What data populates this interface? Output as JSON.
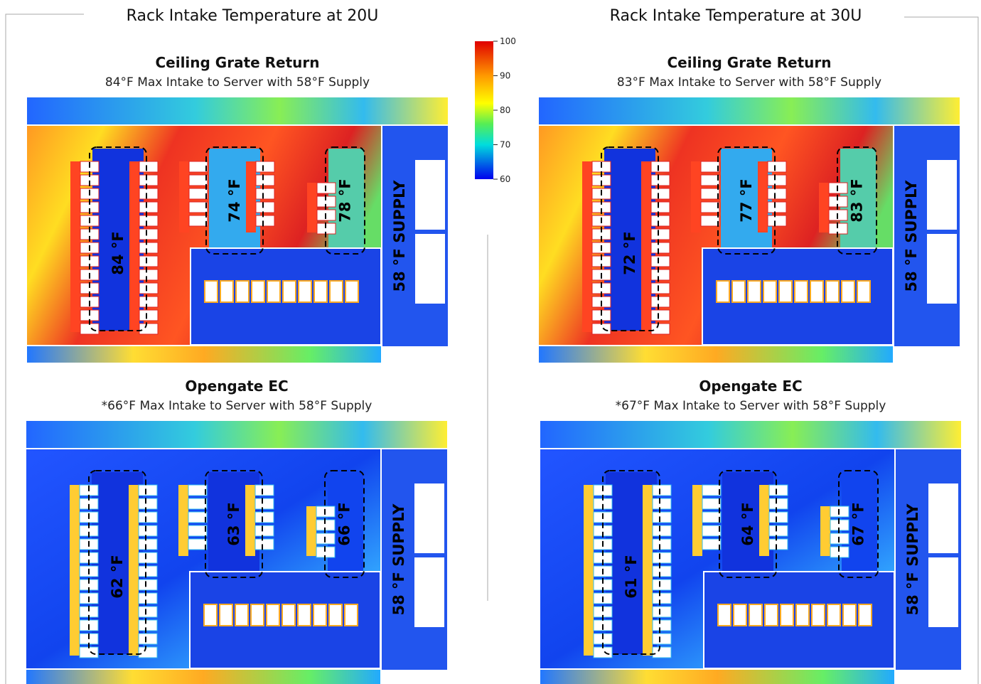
{
  "groups": [
    {
      "title": "Rack Intake Temperature at 20U",
      "panels": [
        {
          "title": "Ceiling Grate Return",
          "subtitle": "84°F Max Intake to Server with 58°F Supply",
          "aisle_labels": [
            "84 °F",
            "74 °F",
            "78 °F"
          ],
          "supply_label": "58 °F SUPPLY"
        },
        {
          "title": "Opengate EC",
          "subtitle": "*66°F Max Intake to Server with 58°F Supply",
          "aisle_labels": [
            "62 °F",
            "63 °F",
            "66 °F"
          ],
          "supply_label": "58 °F SUPPLY"
        }
      ]
    },
    {
      "title": "Rack Intake Temperature at 30U",
      "panels": [
        {
          "title": "Ceiling Grate Return",
          "subtitle": "83°F Max Intake to Server with 58°F Supply",
          "aisle_labels": [
            "72 °F",
            "77 °F",
            "83 °F"
          ],
          "supply_label": "58 °F SUPPLY"
        },
        {
          "title": "Opengate EC",
          "subtitle": "*67°F Max Intake to Server with 58°F Supply",
          "aisle_labels": [
            "61 °F",
            "64 °F",
            "67 °F"
          ],
          "supply_label": "58 °F SUPPLY"
        }
      ]
    }
  ],
  "colorbar": {
    "ticks": [
      100,
      90,
      80,
      70,
      60
    ]
  }
}
